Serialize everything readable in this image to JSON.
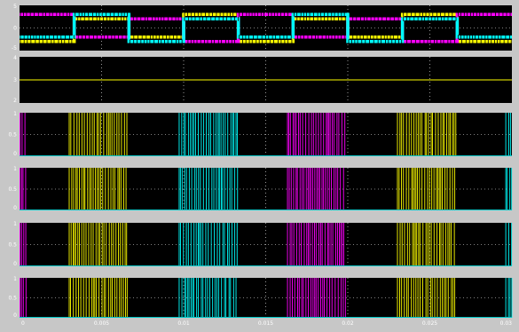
{
  "chart_data": [
    {
      "type": "line",
      "panel": 1,
      "ylim": [
        -5,
        5
      ],
      "yticks": [
        "5",
        "0",
        "-5"
      ],
      "grid": true,
      "series": [
        {
          "color": "#ffff00",
          "step_levels": [
            -3,
            2,
            -2,
            3,
            -3,
            2,
            -2,
            3,
            -3
          ]
        },
        {
          "color": "#ff00ff",
          "step_levels": [
            3,
            -2,
            2,
            -3,
            3,
            -2,
            2,
            -3,
            3
          ]
        },
        {
          "color": "#00ffff",
          "step_levels": [
            -2,
            3,
            -3,
            2,
            -2,
            3,
            -3,
            2,
            -2
          ]
        }
      ]
    },
    {
      "type": "line",
      "panel": 2,
      "ylim": [
        2,
        4
      ],
      "yticks": [
        "4",
        "3",
        "2"
      ],
      "grid": true,
      "series": [
        {
          "color": "#ffff00",
          "constant": 3
        }
      ]
    },
    {
      "type": "line",
      "panel": 3,
      "ylim": [
        0,
        1
      ],
      "yticks": [
        "1",
        "0.5",
        "0"
      ],
      "grid": true,
      "pwm_bursts": [
        {
          "color": "#ff00ff",
          "x_range": [
            0,
            0.0004
          ]
        },
        {
          "color": "#ffff00",
          "x_range": [
            0.003,
            0.0066
          ]
        },
        {
          "color": "#00ffff",
          "x_range": [
            0.0097,
            0.0133
          ]
        },
        {
          "color": "#ff00ff",
          "x_range": [
            0.0163,
            0.0199
          ]
        },
        {
          "color": "#ffff00",
          "x_range": [
            0.023,
            0.0266
          ]
        },
        {
          "color": "#00ffff",
          "x_range": [
            0.0296,
            0.03
          ]
        }
      ]
    },
    {
      "type": "line",
      "panel": 4,
      "ylim": [
        0,
        1
      ],
      "yticks": [
        "1",
        "0.5",
        "0"
      ],
      "grid": true,
      "pwm_bursts": [
        {
          "color": "#ff00ff",
          "x_range": [
            0,
            0.0004
          ]
        },
        {
          "color": "#ffff00",
          "x_range": [
            0.003,
            0.0066
          ]
        },
        {
          "color": "#00ffff",
          "x_range": [
            0.0097,
            0.0133
          ]
        },
        {
          "color": "#ff00ff",
          "x_range": [
            0.0163,
            0.0199
          ]
        },
        {
          "color": "#ffff00",
          "x_range": [
            0.023,
            0.0266
          ]
        },
        {
          "color": "#00ffff",
          "x_range": [
            0.0296,
            0.03
          ]
        }
      ]
    },
    {
      "type": "line",
      "panel": 5,
      "ylim": [
        0,
        1
      ],
      "yticks": [
        "1",
        "0.5",
        "0"
      ],
      "grid": true,
      "pwm_bursts": [
        {
          "color": "#ff00ff",
          "x_range": [
            0,
            0.0004
          ]
        },
        {
          "color": "#ffff00",
          "x_range": [
            0.003,
            0.0066
          ]
        },
        {
          "color": "#00ffff",
          "x_range": [
            0.0097,
            0.0133
          ]
        },
        {
          "color": "#ff00ff",
          "x_range": [
            0.0163,
            0.0199
          ]
        },
        {
          "color": "#ffff00",
          "x_range": [
            0.023,
            0.0266
          ]
        },
        {
          "color": "#00ffff",
          "x_range": [
            0.0296,
            0.03
          ]
        }
      ]
    },
    {
      "type": "line",
      "panel": 6,
      "ylim": [
        0,
        1
      ],
      "yticks": [
        "1",
        "0.5",
        "0"
      ],
      "grid": true,
      "pwm_bursts": [
        {
          "color": "#ff00ff",
          "x_range": [
            0,
            0.0004
          ]
        },
        {
          "color": "#ffff00",
          "x_range": [
            0.003,
            0.0066
          ]
        },
        {
          "color": "#00ffff",
          "x_range": [
            0.0097,
            0.0133
          ]
        },
        {
          "color": "#ff00ff",
          "x_range": [
            0.0163,
            0.0199
          ]
        },
        {
          "color": "#ffff00",
          "x_range": [
            0.023,
            0.0266
          ]
        },
        {
          "color": "#00ffff",
          "x_range": [
            0.0296,
            0.03
          ]
        }
      ]
    }
  ],
  "x_axis": {
    "xlim": [
      0,
      0.03
    ],
    "ticks": [
      0,
      0.005,
      0.01,
      0.015,
      0.02,
      0.025,
      0.03
    ],
    "tick_labels": [
      "0",
      "0.005",
      "0.01",
      "0.015",
      "0.02",
      "0.025",
      "0.03"
    ]
  },
  "colors": {
    "background": "#c7c7c7",
    "plot": "#000000",
    "grid": "#ffffff",
    "text": "#ffffff"
  }
}
